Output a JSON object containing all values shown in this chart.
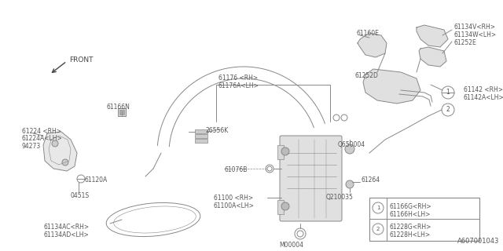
{
  "bg_color": "#ffffff",
  "line_color": "#888888",
  "text_color": "#555555",
  "dark_color": "#444444",
  "footer": "A607001043",
  "legend_items": [
    {
      "num": "1",
      "line1": "61166G<RH>",
      "line2": "61166H<LH>"
    },
    {
      "num": "2",
      "line1": "61228G<RH>",
      "line2": "61228H<LH>"
    }
  ]
}
